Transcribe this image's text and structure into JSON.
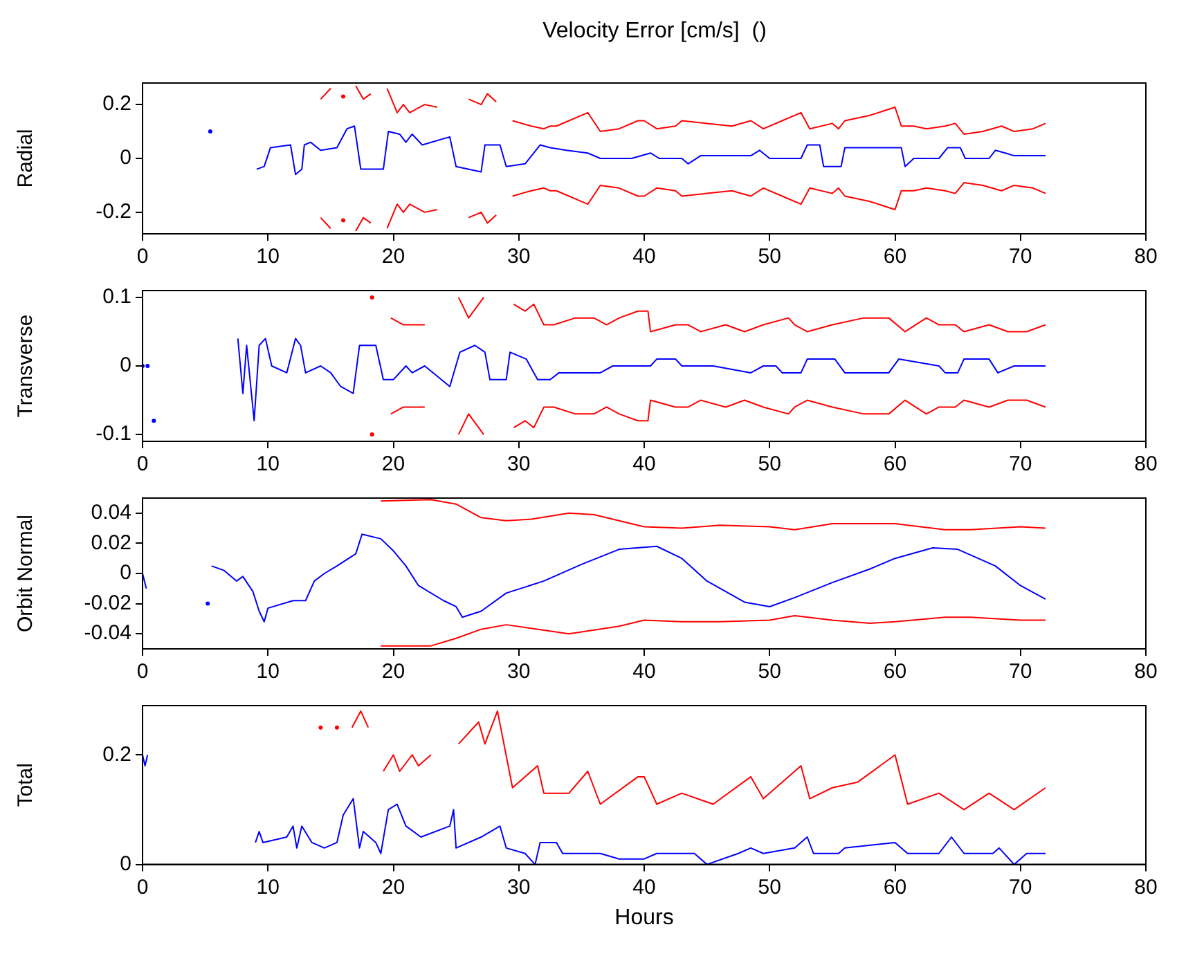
{
  "chart_data": [
    {
      "type": "line",
      "title": "Velocity Error [cm/s]  ()",
      "ylabel": "Radial",
      "xlim": [
        0,
        80
      ],
      "xticks": [
        0,
        10,
        20,
        30,
        40,
        50,
        60,
        70,
        80
      ],
      "ylim": [
        -0.28,
        0.28
      ],
      "yticks": [
        -0.2,
        0,
        0.2
      ],
      "grid": false,
      "legend": false,
      "series": [
        {
          "color": "#0000ff",
          "x": [
            5.4,
            7,
            9.1,
            9.7,
            10.2,
            11.8,
            12.2,
            12.7,
            12.9,
            13.4,
            14.2,
            15.5,
            16.3,
            16.9,
            17.4,
            19.2,
            19.6,
            20.5,
            21,
            21.5,
            22.3,
            24.5,
            25,
            27,
            27.3,
            28.5,
            29,
            30.5,
            31.7,
            32.5,
            33.8,
            35.5,
            36.5,
            39,
            40.5,
            41.2,
            43,
            43.5,
            44.5,
            48.5,
            49.2,
            50,
            52.5,
            53,
            54,
            54.3,
            55.7,
            56,
            60.5,
            60.8,
            61.5,
            63.5,
            64.2,
            65.2,
            65.6,
            67.5,
            68,
            68.8,
            69.5,
            72
          ],
          "values": [
            0.1,
            null,
            -0.04,
            -0.03,
            0.04,
            0.05,
            -0.06,
            -0.04,
            0.05,
            0.06,
            0.03,
            0.04,
            0.11,
            0.12,
            -0.04,
            -0.04,
            0.1,
            0.09,
            0.06,
            0.09,
            0.05,
            0.08,
            -0.03,
            -0.05,
            0.05,
            0.05,
            -0.03,
            -0.02,
            0.05,
            0.04,
            0.03,
            0.02,
            0.0,
            0.0,
            0.02,
            0.0,
            0.0,
            -0.02,
            0.01,
            0.01,
            0.03,
            0.0,
            0.0,
            0.05,
            0.05,
            -0.03,
            -0.03,
            0.04,
            0.04,
            -0.03,
            0.0,
            0.0,
            0.04,
            0.04,
            0.0,
            0.0,
            0.03,
            0.02,
            0.01,
            0.01
          ]
        },
        {
          "color": "#ff0000",
          "x": [
            14.2,
            15,
            15.5,
            16,
            16.5,
            17,
            17.6,
            18.2,
            18.6,
            19,
            19.5,
            20.3,
            20.8,
            21.3,
            22.5,
            23.5,
            24.2,
            24.7,
            25.2,
            26,
            27,
            27.5,
            28.2,
            28.7,
            29,
            29.5,
            31,
            32,
            32.5,
            33,
            35.5,
            36.5,
            38,
            39.5,
            40,
            41,
            42.5,
            43,
            45,
            47,
            48.5,
            49.5,
            51,
            52.5,
            53.2,
            55,
            55.5,
            56,
            58,
            60,
            60.5,
            61.5,
            62.5,
            64,
            64.8,
            65.5,
            67,
            68.5,
            69.5,
            71,
            72
          ],
          "values": [
            0.22,
            0.26,
            null,
            0.23,
            null,
            0.27,
            0.22,
            0.24,
            null,
            null,
            0.26,
            0.17,
            0.2,
            0.17,
            0.2,
            0.19,
            null,
            null,
            null,
            0.22,
            0.2,
            0.24,
            0.21,
            null,
            null,
            0.14,
            0.12,
            0.11,
            0.12,
            0.12,
            0.17,
            0.1,
            0.11,
            0.14,
            0.14,
            0.11,
            0.12,
            0.14,
            0.13,
            0.12,
            0.14,
            0.11,
            0.14,
            0.17,
            0.11,
            0.13,
            0.11,
            0.14,
            0.16,
            0.19,
            0.12,
            0.12,
            0.11,
            0.12,
            0.13,
            0.09,
            0.1,
            0.12,
            0.1,
            0.11,
            0.13
          ]
        },
        {
          "color": "#ff0000",
          "x": [
            14.2,
            15,
            15.5,
            16,
            16.5,
            17,
            17.6,
            18.2,
            18.6,
            19,
            19.5,
            20.3,
            20.8,
            21.3,
            22.5,
            23.5,
            24.2,
            24.7,
            25.2,
            26,
            27,
            27.5,
            28.2,
            28.7,
            29,
            29.5,
            31,
            32,
            32.5,
            33,
            35.5,
            36.5,
            38,
            39.5,
            40,
            41,
            42.5,
            43,
            45,
            47,
            48.5,
            49.5,
            51,
            52.5,
            53.2,
            55,
            55.5,
            56,
            58,
            60,
            60.5,
            61.5,
            62.5,
            64,
            64.8,
            65.5,
            67,
            68.5,
            69.5,
            71,
            72
          ],
          "values": [
            -0.22,
            -0.26,
            null,
            -0.23,
            null,
            -0.27,
            -0.22,
            -0.24,
            null,
            null,
            -0.26,
            -0.17,
            -0.2,
            -0.17,
            -0.2,
            -0.19,
            null,
            null,
            null,
            -0.22,
            -0.2,
            -0.24,
            -0.21,
            null,
            null,
            -0.14,
            -0.12,
            -0.11,
            -0.12,
            -0.12,
            -0.17,
            -0.1,
            -0.11,
            -0.14,
            -0.14,
            -0.11,
            -0.12,
            -0.14,
            -0.13,
            -0.12,
            -0.14,
            -0.11,
            -0.14,
            -0.17,
            -0.11,
            -0.13,
            -0.11,
            -0.14,
            -0.16,
            -0.19,
            -0.12,
            -0.12,
            -0.11,
            -0.12,
            -0.13,
            -0.09,
            -0.1,
            -0.12,
            -0.1,
            -0.11,
            -0.13
          ]
        }
      ]
    },
    {
      "type": "line",
      "ylabel": "Transverse",
      "xlim": [
        0,
        80
      ],
      "xticks": [
        0,
        10,
        20,
        30,
        40,
        50,
        60,
        70,
        80
      ],
      "ylim": [
        -0.11,
        0.11
      ],
      "yticks": [
        -0.1,
        0,
        0.1
      ],
      "grid": false,
      "legend": false,
      "series": [
        {
          "color": "#0000ff",
          "x": [
            0,
            0.2,
            0.4,
            0.6,
            0.9,
            1.1,
            7.6,
            8.0,
            8.3,
            8.9,
            9.3,
            9.8,
            10.3,
            11.5,
            12.2,
            12.6,
            13,
            14.2,
            15,
            15.8,
            16.8,
            17.3,
            18.6,
            19.2,
            20,
            21,
            21.5,
            22.5,
            24.5,
            25.3,
            26.5,
            27.3,
            27.7,
            29,
            29.3,
            30.6,
            31.5,
            32.5,
            33.2,
            36.5,
            37.5,
            40.5,
            41,
            42.5,
            43,
            45.5,
            48.5,
            49.5,
            50.5,
            51,
            52.5,
            53,
            55.2,
            56,
            59.5,
            60.3,
            63.5,
            64,
            65,
            65.5,
            67.5,
            68.2,
            69.5,
            72
          ],
          "values": [
            0.0,
            null,
            0.0,
            null,
            -0.08,
            null,
            0.04,
            -0.04,
            0.03,
            -0.08,
            0.03,
            0.04,
            0.0,
            -0.01,
            0.04,
            0.03,
            -0.01,
            0.0,
            -0.01,
            -0.03,
            -0.04,
            0.03,
            0.03,
            -0.02,
            -0.02,
            0.0,
            -0.01,
            0.0,
            -0.03,
            0.02,
            0.03,
            0.02,
            -0.02,
            -0.02,
            0.02,
            0.01,
            -0.02,
            -0.02,
            -0.01,
            -0.01,
            0.0,
            0.0,
            0.01,
            0.01,
            0.0,
            0.0,
            -0.01,
            0.0,
            0.0,
            -0.01,
            -0.01,
            0.01,
            0.01,
            -0.01,
            -0.01,
            0.01,
            0.0,
            -0.01,
            -0.01,
            0.01,
            0.01,
            -0.01,
            0.0,
            0.0
          ]
        },
        {
          "color": "#ff0000",
          "x": [
            18.3,
            19.2,
            19.8,
            20.8,
            22.5,
            24.7,
            25,
            25.2,
            26,
            27.2,
            27.6,
            28.2,
            29.6,
            30.5,
            31.2,
            32,
            32.8,
            34.5,
            36,
            37,
            38,
            39.5,
            40.3,
            40.5,
            42.5,
            43.5,
            44.5,
            46.5,
            48,
            49.5,
            51.5,
            52,
            53,
            55,
            57.5,
            59.5,
            60.8,
            62.5,
            63.5,
            64.8,
            65.5,
            67.5,
            69,
            70.5,
            72
          ],
          "values": [
            0.1,
            null,
            0.07,
            0.06,
            0.06,
            null,
            null,
            0.1,
            0.07,
            0.1,
            null,
            null,
            0.09,
            0.08,
            0.09,
            0.06,
            0.06,
            0.07,
            0.07,
            0.06,
            0.07,
            0.08,
            0.08,
            0.05,
            0.06,
            0.06,
            0.05,
            0.06,
            0.05,
            0.06,
            0.07,
            0.06,
            0.05,
            0.06,
            0.07,
            0.07,
            0.05,
            0.07,
            0.06,
            0.06,
            0.05,
            0.06,
            0.05,
            0.05,
            0.06
          ]
        },
        {
          "color": "#ff0000",
          "x": [
            18.3,
            19.2,
            19.8,
            20.8,
            22.5,
            24.7,
            25,
            25.2,
            26,
            27.2,
            27.6,
            28.2,
            29.6,
            30.5,
            31.2,
            32,
            32.8,
            34.5,
            36,
            37,
            38,
            39.5,
            40.3,
            40.5,
            42.5,
            43.5,
            44.5,
            46.5,
            48,
            49.5,
            51.5,
            52,
            53,
            55,
            57.5,
            59.5,
            60.8,
            62.5,
            63.5,
            64.8,
            65.5,
            67.5,
            69,
            70.5,
            72
          ],
          "values": [
            -0.1,
            null,
            -0.07,
            -0.06,
            -0.06,
            null,
            null,
            -0.1,
            -0.07,
            -0.1,
            null,
            null,
            -0.09,
            -0.08,
            -0.09,
            -0.06,
            -0.06,
            -0.07,
            -0.07,
            -0.06,
            -0.07,
            -0.08,
            -0.08,
            -0.05,
            -0.06,
            -0.06,
            -0.05,
            -0.06,
            -0.05,
            -0.06,
            -0.07,
            -0.06,
            -0.05,
            -0.06,
            -0.07,
            -0.07,
            -0.05,
            -0.07,
            -0.06,
            -0.06,
            -0.05,
            -0.06,
            -0.05,
            -0.05,
            -0.06
          ]
        }
      ]
    },
    {
      "type": "line",
      "ylabel": "Orbit Normal",
      "xlim": [
        0,
        80
      ],
      "xticks": [
        0,
        10,
        20,
        30,
        40,
        50,
        60,
        70,
        80
      ],
      "ylim": [
        -0.05,
        0.05
      ],
      "yticks": [
        -0.04,
        -0.02,
        0,
        0.02,
        0.04
      ],
      "grid": false,
      "legend": false,
      "series": [
        {
          "color": "#0000ff",
          "x": [
            0,
            0.3,
            0.5,
            5.2,
            5.4,
            5.5,
            6.5,
            7.5,
            8,
            8.8,
            9.3,
            9.7,
            10,
            12,
            13,
            13.7,
            14.5,
            15.5,
            17,
            17.5,
            19,
            20,
            21,
            22,
            24,
            25,
            25.5,
            27,
            29,
            32,
            35,
            38,
            41,
            43,
            45,
            48,
            50,
            52,
            55,
            58,
            60,
            63,
            65,
            68,
            70,
            72
          ],
          "values": [
            0.0,
            -0.01,
            null,
            -0.02,
            null,
            0.005,
            0.002,
            -0.005,
            -0.002,
            -0.012,
            -0.025,
            -0.032,
            -0.023,
            -0.018,
            -0.018,
            -0.005,
            0.0,
            0.005,
            0.013,
            0.026,
            0.023,
            0.015,
            0.005,
            -0.008,
            -0.018,
            -0.022,
            -0.029,
            -0.025,
            -0.013,
            -0.005,
            0.006,
            0.016,
            0.018,
            0.01,
            -0.005,
            -0.019,
            -0.022,
            -0.016,
            -0.006,
            0.003,
            0.01,
            0.017,
            0.016,
            0.005,
            -0.008,
            -0.017
          ]
        },
        {
          "color": "#ff0000",
          "x": [
            19,
            23,
            25,
            27,
            29,
            31,
            34,
            36,
            38,
            40,
            43,
            46,
            50,
            52,
            55,
            60,
            64,
            66,
            70,
            72
          ],
          "values": [
            0.048,
            0.049,
            0.046,
            0.037,
            0.035,
            0.036,
            0.04,
            0.039,
            0.035,
            0.031,
            0.03,
            0.032,
            0.031,
            0.029,
            0.033,
            0.033,
            0.029,
            0.029,
            0.031,
            0.03
          ]
        },
        {
          "color": "#ff0000",
          "x": [
            19,
            23,
            25,
            27,
            29,
            34,
            38,
            40,
            43,
            46,
            50,
            52,
            55,
            58,
            60,
            64,
            66,
            70,
            72
          ],
          "values": [
            -0.048,
            -0.048,
            -0.043,
            -0.037,
            -0.034,
            -0.04,
            -0.035,
            -0.031,
            -0.032,
            -0.032,
            -0.031,
            -0.028,
            -0.031,
            -0.033,
            -0.032,
            -0.029,
            -0.029,
            -0.031,
            -0.031
          ]
        }
      ]
    },
    {
      "type": "line",
      "ylabel": "Total",
      "xlabel": "Hours",
      "xlim": [
        0,
        80
      ],
      "xticks": [
        0,
        10,
        20,
        30,
        40,
        50,
        60,
        70,
        80
      ],
      "ylim": [
        0,
        0.29
      ],
      "yticks": [
        0,
        0.2
      ],
      "grid": false,
      "legend": false,
      "series": [
        {
          "color": "#0000ff",
          "x": [
            0,
            0.2,
            0.4,
            0.5,
            9,
            9.3,
            9.6,
            11.5,
            12,
            12.3,
            12.7,
            13.5,
            14.5,
            15.5,
            16,
            16.8,
            17.3,
            17.6,
            18.6,
            19,
            19.6,
            20.3,
            21,
            22.2,
            24.5,
            24.8,
            25,
            27,
            28.5,
            29,
            30.5,
            31.3,
            31.7,
            33,
            33.5,
            36.5,
            38,
            40,
            41,
            44,
            45,
            47.5,
            48.5,
            49.5,
            52,
            53,
            53.5,
            55.5,
            56,
            60,
            61,
            63.5,
            64.5,
            65.5,
            67.8,
            68.3,
            69.5,
            70.5,
            72
          ],
          "values": [
            0.2,
            0.18,
            0.2,
            null,
            0.04,
            0.06,
            0.04,
            0.05,
            0.07,
            0.03,
            0.07,
            0.04,
            0.03,
            0.04,
            0.09,
            0.12,
            0.03,
            0.06,
            0.04,
            0.02,
            0.1,
            0.11,
            0.07,
            0.05,
            0.07,
            0.1,
            0.03,
            0.05,
            0.07,
            0.03,
            0.02,
            0.0,
            0.04,
            0.04,
            0.02,
            0.02,
            0.01,
            0.01,
            0.02,
            0.02,
            0.0,
            0.02,
            0.03,
            0.02,
            0.03,
            0.05,
            0.02,
            0.02,
            0.03,
            0.04,
            0.02,
            0.02,
            0.05,
            0.02,
            0.02,
            0.03,
            0.0,
            0.02,
            0.02
          ]
        },
        {
          "color": "#ff0000",
          "x": [
            14.2,
            15,
            15.5,
            16.3,
            16.7,
            17.4,
            18,
            18.5,
            19,
            19.2,
            20,
            20.5,
            21.5,
            22,
            23,
            24.3,
            25.2,
            26.8,
            27.3,
            28.3,
            29.5,
            31.5,
            32,
            33,
            34,
            35.5,
            36.5,
            39.5,
            40,
            41,
            43,
            45.5,
            48.5,
            49.5,
            52.5,
            53.2,
            55,
            57,
            60,
            61,
            63.5,
            65.5,
            67.5,
            69.5,
            72
          ],
          "values": [
            0.25,
            null,
            0.25,
            null,
            0.25,
            0.28,
            0.25,
            null,
            null,
            0.17,
            0.2,
            0.17,
            0.2,
            0.18,
            0.2,
            null,
            0.22,
            0.26,
            0.22,
            0.28,
            0.14,
            0.18,
            0.13,
            0.13,
            0.13,
            0.17,
            0.11,
            0.16,
            0.16,
            0.11,
            0.13,
            0.11,
            0.16,
            0.12,
            0.18,
            0.12,
            0.14,
            0.15,
            0.2,
            0.11,
            0.13,
            0.1,
            0.13,
            0.1,
            0.14
          ]
        }
      ]
    }
  ]
}
